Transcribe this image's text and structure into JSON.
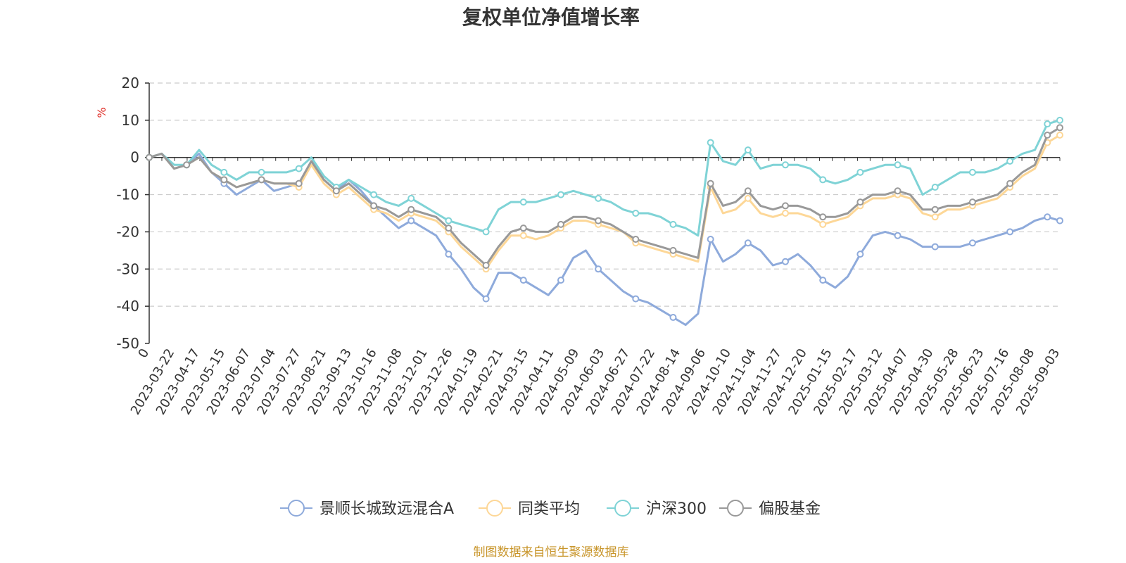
{
  "chart_data": {
    "type": "line",
    "title": "复权单位净值增长率",
    "ylabel": "%",
    "ylim": [
      -50,
      20
    ],
    "yticks": [
      20,
      10,
      0,
      -10,
      -20,
      -30,
      -40,
      -50
    ],
    "grid": true,
    "legend_position": "bottom",
    "xtick_labels": [
      "0",
      "2023-03-22",
      "2023-04-17",
      "2023-05-15",
      "2023-06-07",
      "2023-07-04",
      "2023-07-27",
      "2023-08-21",
      "2023-09-13",
      "2023-10-16",
      "2023-11-08",
      "2023-12-01",
      "2023-12-26",
      "2024-01-19",
      "2024-02-21",
      "2024-03-15",
      "2024-04-11",
      "2024-05-09",
      "2024-06-03",
      "2024-06-27",
      "2024-07-22",
      "2024-08-14",
      "2024-09-06",
      "2024-10-10",
      "2024-11-04",
      "2024-11-27",
      "2024-12-20",
      "2025-01-15",
      "2025-02-17",
      "2025-03-12",
      "2025-04-07",
      "2025-04-30",
      "2025-05-28",
      "2025-06-23",
      "2025-07-16",
      "2025-08-08",
      "2025-09-03"
    ],
    "series": [
      {
        "name": "景顺长城致远混合A",
        "color": "#8eaadb",
        "values": [
          0,
          1,
          -3,
          -2,
          1,
          -4,
          -7,
          -10,
          -8,
          -6,
          -9,
          -8,
          -7,
          -1,
          -6,
          -9,
          -6,
          -9,
          -13,
          -16,
          -19,
          -17,
          -19,
          -21,
          -26,
          -30,
          -35,
          -38,
          -31,
          -31,
          -33,
          -35,
          -37,
          -33,
          -27,
          -25,
          -30,
          -33,
          -36,
          -38,
          -39,
          -41,
          -43,
          -45,
          -42,
          -22,
          -28,
          -26,
          -23,
          -25,
          -29,
          -28,
          -26,
          -29,
          -33,
          -35,
          -32,
          -26,
          -21,
          -20,
          -21,
          -22,
          -24,
          -24,
          -24,
          -24,
          -23,
          -22,
          -21,
          -20,
          -19,
          -17,
          -16,
          -17
        ]
      },
      {
        "name": "同类平均",
        "color": "#fdd797",
        "values": [
          0,
          1,
          -3,
          -2,
          0,
          -4,
          -6,
          -8,
          -7,
          -6,
          -7,
          -7,
          -8,
          -2,
          -7,
          -10,
          -8,
          -11,
          -14,
          -15,
          -17,
          -15,
          -16,
          -17,
          -20,
          -24,
          -27,
          -30,
          -25,
          -21,
          -21,
          -22,
          -21,
          -19,
          -17,
          -17,
          -18,
          -19,
          -20,
          -23,
          -24,
          -25,
          -26,
          -27,
          -28,
          -8,
          -15,
          -14,
          -11,
          -15,
          -16,
          -15,
          -15,
          -16,
          -18,
          -17,
          -16,
          -13,
          -11,
          -11,
          -10,
          -11,
          -15,
          -16,
          -14,
          -14,
          -13,
          -12,
          -11,
          -8,
          -5,
          -3,
          4,
          6
        ]
      },
      {
        "name": "沪深300",
        "color": "#7fd3d6",
        "values": [
          0,
          1,
          -2,
          -2,
          2,
          -2,
          -4,
          -6,
          -4,
          -4,
          -4,
          -4,
          -3,
          0,
          -5,
          -8,
          -6,
          -8,
          -10,
          -12,
          -13,
          -11,
          -13,
          -15,
          -17,
          -18,
          -19,
          -20,
          -14,
          -12,
          -12,
          -12,
          -11,
          -10,
          -9,
          -10,
          -11,
          -12,
          -14,
          -15,
          -15,
          -16,
          -18,
          -19,
          -21,
          4,
          -1,
          -2,
          2,
          -3,
          -2,
          -2,
          -2,
          -3,
          -6,
          -7,
          -6,
          -4,
          -3,
          -2,
          -2,
          -3,
          -10,
          -8,
          -6,
          -4,
          -4,
          -4,
          -3,
          -1,
          1,
          2,
          9,
          10
        ]
      },
      {
        "name": "偏股基金",
        "color": "#999999",
        "values": [
          0,
          1,
          -3,
          -2,
          0,
          -4,
          -6,
          -8,
          -7,
          -6,
          -7,
          -7,
          -7,
          -1,
          -6,
          -9,
          -7,
          -10,
          -13,
          -14,
          -16,
          -14,
          -15,
          -16,
          -19,
          -23,
          -26,
          -29,
          -24,
          -20,
          -19,
          -20,
          -20,
          -18,
          -16,
          -16,
          -17,
          -18,
          -20,
          -22,
          -23,
          -24,
          -25,
          -26,
          -27,
          -7,
          -13,
          -12,
          -9,
          -13,
          -14,
          -13,
          -13,
          -14,
          -16,
          -16,
          -15,
          -12,
          -10,
          -10,
          -9,
          -10,
          -14,
          -14,
          -13,
          -13,
          -12,
          -11,
          -10,
          -7,
          -4,
          -2,
          6,
          8
        ]
      }
    ]
  },
  "source_note": "制图数据来自恒生聚源数据库"
}
